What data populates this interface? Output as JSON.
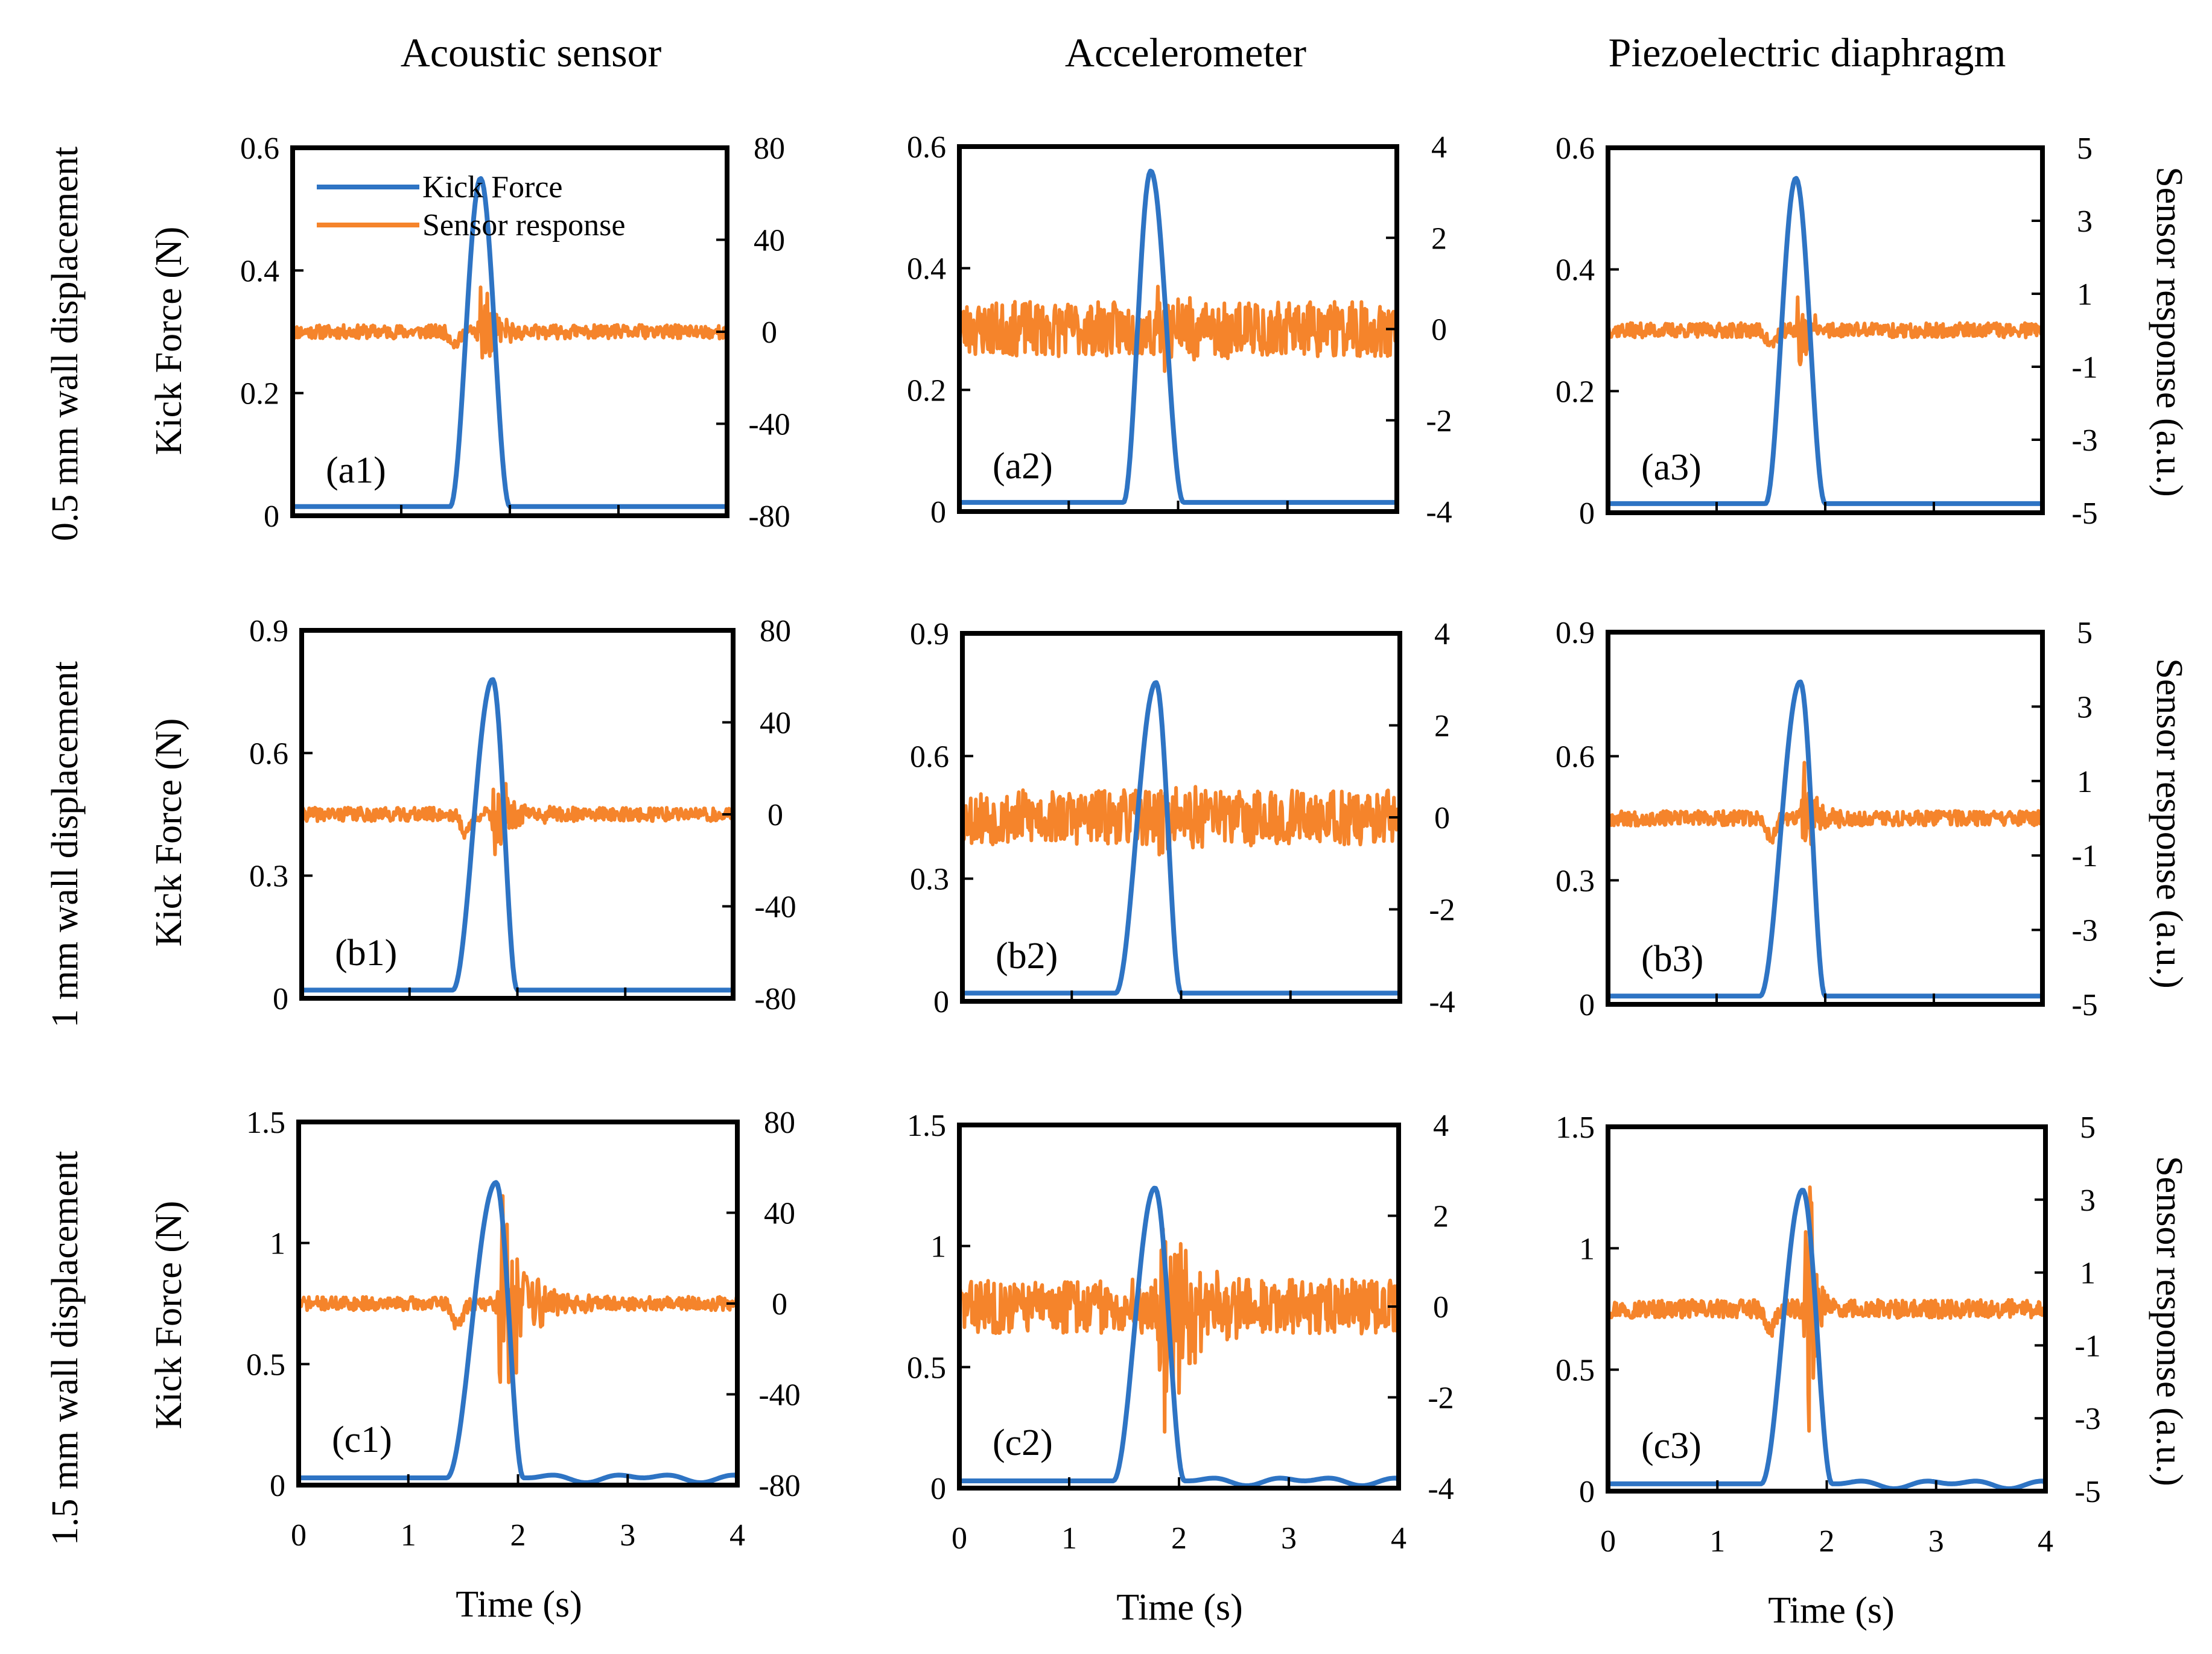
{
  "chart_data": {
    "type": "line",
    "title": "",
    "column_titles": [
      "Acoustic sensor",
      "Accelerometer",
      "Piezoelectric diaphragm"
    ],
    "row_labels": [
      "0.5 mm wall displacement",
      "1 mm wall displacement",
      "1.5 mm wall displacement"
    ],
    "xlabel": "Time (s)",
    "ylabel_left": "Kick Force (N)",
    "ylabel_right": "Sensor response (a.u.)",
    "legend": {
      "position": "top-left",
      "entries": [
        "Kick Force",
        "Sensor response"
      ]
    },
    "x_ticks": [
      "0",
      "1",
      "2",
      "3",
      "4"
    ],
    "xlim": [
      0,
      4
    ],
    "colors": {
      "force": "#2e74c4",
      "response": "#f5842b"
    },
    "panels": [
      {
        "id": "a1",
        "label": "(a1)",
        "row": 0,
        "col": 0,
        "ylim_left": [
          0,
          0.6
        ],
        "left_ticks": [
          "0",
          "0.2",
          "0.4",
          "0.6"
        ],
        "ylim_right": [
          -80,
          80
        ],
        "right_ticks": [
          "-80",
          "-40",
          "0",
          "40",
          "80"
        ],
        "force": {
          "start": 1.45,
          "peak_time": 1.73,
          "peak": 0.55,
          "end": 2.0,
          "baseline": 0.015
        },
        "response": {
          "baseline": 0.0,
          "noise": 3.0,
          "dip_time": 1.5,
          "dip": -5,
          "burst_time": 1.75,
          "burst_amp": 28,
          "burst_decay": 0.1,
          "seed": 11
        }
      },
      {
        "id": "a2",
        "label": "(a2)",
        "row": 0,
        "col": 1,
        "ylim_left": [
          0,
          0.6
        ],
        "left_ticks": [
          "0",
          "0.2",
          "0.4",
          "0.6"
        ],
        "ylim_right": [
          -4,
          4
        ],
        "right_ticks": [
          "-4",
          "-2",
          "0",
          "2",
          "4"
        ],
        "force": {
          "start": 1.5,
          "peak_time": 1.75,
          "peak": 0.56,
          "end": 2.05,
          "baseline": 0.015
        },
        "response": {
          "baseline": 0.0,
          "noise": 0.6,
          "dip_time": 1.6,
          "dip": 0,
          "burst_time": 1.8,
          "burst_amp": 0.6,
          "burst_decay": 0.3,
          "seed": 23
        }
      },
      {
        "id": "a3",
        "label": "(a3)",
        "row": 0,
        "col": 2,
        "ylim_left": [
          0,
          0.6
        ],
        "left_ticks": [
          "0",
          "0.2",
          "0.4",
          "0.6"
        ],
        "ylim_right": [
          -5,
          5
        ],
        "right_ticks": [
          "-5",
          "-3",
          "-1",
          "1",
          "3",
          "5"
        ],
        "force": {
          "start": 1.45,
          "peak_time": 1.73,
          "peak": 0.55,
          "end": 2.0,
          "baseline": 0.015
        },
        "response": {
          "baseline": 0.0,
          "noise": 0.2,
          "dip_time": 1.5,
          "dip": -0.4,
          "burst_time": 1.75,
          "burst_amp": 1.5,
          "burst_decay": 0.1,
          "seed": 37
        }
      },
      {
        "id": "b1",
        "label": "(b1)",
        "row": 1,
        "col": 0,
        "ylim_left": [
          0,
          0.9
        ],
        "left_ticks": [
          "0",
          "0.3",
          "0.6",
          "0.9"
        ],
        "ylim_right": [
          -80,
          80
        ],
        "right_ticks": [
          "-80",
          "-40",
          "0",
          "40",
          "80"
        ],
        "force": {
          "start": 1.4,
          "peak_time": 1.77,
          "peak": 0.78,
          "end": 2.0,
          "baseline": 0.02
        },
        "response": {
          "baseline": 0.0,
          "noise": 3.0,
          "dip_time": 1.52,
          "dip": -8,
          "burst_time": 1.8,
          "burst_amp": 22,
          "burst_decay": 0.15,
          "seed": 41
        }
      },
      {
        "id": "b2",
        "label": "(b2)",
        "row": 1,
        "col": 1,
        "ylim_left": [
          0,
          0.9
        ],
        "left_ticks": [
          "0",
          "0.3",
          "0.6",
          "0.9"
        ],
        "ylim_right": [
          -4,
          4
        ],
        "right_ticks": [
          "-4",
          "-2",
          "0",
          "2",
          "4"
        ],
        "force": {
          "start": 1.4,
          "peak_time": 1.77,
          "peak": 0.78,
          "end": 2.0,
          "baseline": 0.02
        },
        "response": {
          "baseline": 0.0,
          "noise": 0.6,
          "dip_time": 1.6,
          "dip": 0,
          "burst_time": 1.8,
          "burst_amp": 0.6,
          "burst_decay": 0.3,
          "seed": 53
        }
      },
      {
        "id": "b3",
        "label": "(b3)",
        "row": 1,
        "col": 2,
        "ylim_left": [
          0,
          0.9
        ],
        "left_ticks": [
          "0",
          "0.3",
          "0.6",
          "0.9"
        ],
        "ylim_right": [
          -5,
          5
        ],
        "right_ticks": [
          "-5",
          "-3",
          "-1",
          "1",
          "3",
          "5"
        ],
        "force": {
          "start": 1.4,
          "peak_time": 1.77,
          "peak": 0.78,
          "end": 2.0,
          "baseline": 0.02
        },
        "response": {
          "baseline": 0.0,
          "noise": 0.2,
          "dip_time": 1.5,
          "dip": -0.5,
          "burst_time": 1.8,
          "burst_amp": 1.6,
          "burst_decay": 0.1,
          "seed": 67
        }
      },
      {
        "id": "c1",
        "label": "(c1)",
        "row": 2,
        "col": 0,
        "ylim_left": [
          0,
          1.5
        ],
        "left_ticks": [
          "0",
          "0.5",
          "1",
          "1.5"
        ],
        "ylim_right": [
          -80,
          80
        ],
        "right_ticks": [
          "-80",
          "-40",
          "0",
          "40",
          "80"
        ],
        "force": {
          "start": 1.35,
          "peak_time": 1.8,
          "peak": 1.25,
          "end": 2.05,
          "baseline": 0.03
        },
        "response": {
          "baseline": 0.0,
          "noise": 3.0,
          "dip_time": 1.45,
          "dip": -10,
          "burst_time": 1.85,
          "burst_amp": 55,
          "burst_decay": 0.2,
          "seed": 71
        }
      },
      {
        "id": "c2",
        "label": "(c2)",
        "row": 2,
        "col": 1,
        "ylim_left": [
          0,
          1.5
        ],
        "left_ticks": [
          "0",
          "0.5",
          "1",
          "1.5"
        ],
        "ylim_right": [
          -4,
          4
        ],
        "right_ticks": [
          "-4",
          "-2",
          "0",
          "2",
          "4"
        ],
        "force": {
          "start": 1.4,
          "peak_time": 1.78,
          "peak": 1.24,
          "end": 2.05,
          "baseline": 0.03
        },
        "response": {
          "baseline": 0.0,
          "noise": 0.6,
          "dip_time": 1.6,
          "dip": 0,
          "burst_time": 1.85,
          "burst_amp": 3.2,
          "burst_decay": 0.2,
          "seed": 83
        }
      },
      {
        "id": "c3",
        "label": "(c3)",
        "row": 2,
        "col": 2,
        "ylim_left": [
          0,
          1.5
        ],
        "left_ticks": [
          "0",
          "0.5",
          "1",
          "1.5"
        ],
        "ylim_right": [
          -5,
          5
        ],
        "right_ticks": [
          "-5",
          "-3",
          "-1",
          "1",
          "3",
          "5"
        ],
        "force": {
          "start": 1.4,
          "peak_time": 1.78,
          "peak": 1.24,
          "end": 2.05,
          "baseline": 0.03
        },
        "response": {
          "baseline": 0.0,
          "noise": 0.25,
          "dip_time": 1.48,
          "dip": -0.6,
          "burst_time": 1.83,
          "burst_amp": 4.2,
          "burst_decay": 0.08,
          "seed": 97
        }
      }
    ]
  }
}
